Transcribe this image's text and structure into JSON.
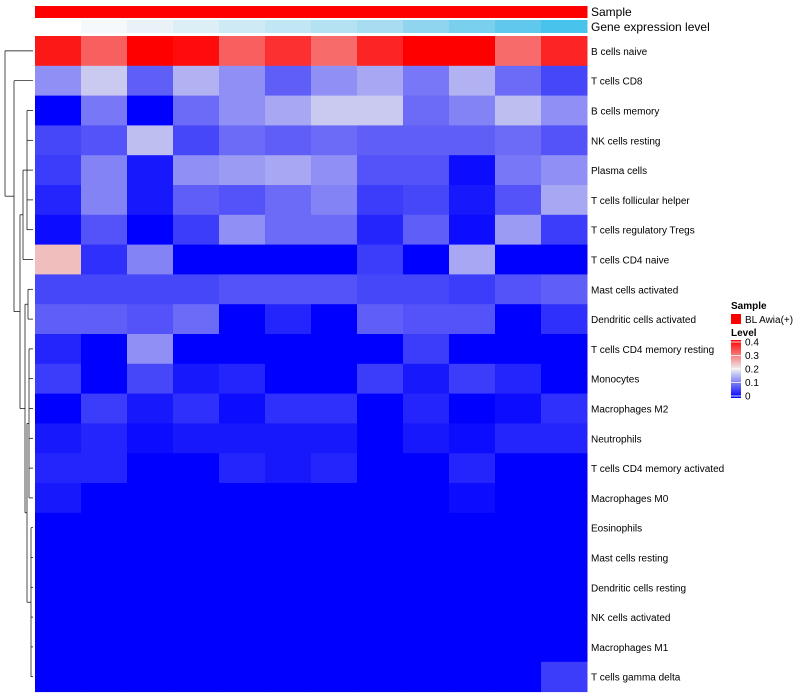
{
  "chart_data": {
    "type": "heatmap",
    "title": "",
    "color_scale": {
      "stops": [
        {
          "value": 0.0,
          "color": "#0000FF"
        },
        {
          "value": 0.2,
          "color": "#EEEEEE"
        },
        {
          "value": 0.4,
          "color": "#FF0000"
        }
      ],
      "ticks": [
        "0",
        "0.1",
        "0.2",
        "0.3",
        "0.4"
      ],
      "range": [
        0,
        0.4
      ]
    },
    "annotations": [
      {
        "label": "Sample",
        "colors": [
          "#FF0000",
          "#FF0000",
          "#FF0000",
          "#FF0000",
          "#FF0000",
          "#FF0000",
          "#FF0000",
          "#FF0000",
          "#FF0000",
          "#FF0000",
          "#FF0000",
          "#FF0000"
        ]
      },
      {
        "label": "Gene expression level",
        "colors": [
          "#FFFFFF",
          "#F6F9FC",
          "#EAF2F8",
          "#DCEFF7",
          "#CEEAF5",
          "#C2E7F4",
          "#B5E2F2",
          "#A8DDF1",
          "#8FD5EF",
          "#78CFEE",
          "#60C8EC",
          "#48C3EB"
        ]
      }
    ],
    "legend": {
      "sample_title": "Sample",
      "sample_entries": [
        {
          "label": "BL Awia(+)",
          "color": "#FF0000"
        }
      ],
      "level_title": "Level"
    },
    "rows": [
      {
        "label": "B cells naive",
        "values": [
          0.38,
          0.32,
          0.4,
          0.39,
          0.32,
          0.36,
          0.31,
          0.37,
          0.4,
          0.4,
          0.31,
          0.37
        ]
      },
      {
        "label": "T cells CD8",
        "values": [
          0.12,
          0.17,
          0.08,
          0.15,
          0.12,
          0.08,
          0.12,
          0.14,
          0.1,
          0.15,
          0.09,
          0.06
        ]
      },
      {
        "label": "B cells memory",
        "values": [
          0.0,
          0.1,
          0.0,
          0.09,
          0.12,
          0.14,
          0.17,
          0.17,
          0.09,
          0.11,
          0.16,
          0.12
        ]
      },
      {
        "label": "NK cells resting",
        "values": [
          0.06,
          0.07,
          0.16,
          0.06,
          0.09,
          0.08,
          0.09,
          0.08,
          0.08,
          0.08,
          0.09,
          0.07
        ]
      },
      {
        "label": "Plasma cells",
        "values": [
          0.05,
          0.11,
          0.02,
          0.12,
          0.13,
          0.14,
          0.12,
          0.07,
          0.07,
          0.01,
          0.1,
          0.12
        ]
      },
      {
        "label": "T cells follicular helper",
        "values": [
          0.03,
          0.11,
          0.02,
          0.08,
          0.07,
          0.09,
          0.11,
          0.05,
          0.06,
          0.02,
          0.07,
          0.14
        ]
      },
      {
        "label": "T cells regulatory  Tregs",
        "values": [
          0.01,
          0.07,
          0.0,
          0.05,
          0.12,
          0.09,
          0.09,
          0.03,
          0.08,
          0.01,
          0.13,
          0.05
        ]
      },
      {
        "label": "T cells CD4 naive",
        "values": [
          0.24,
          0.04,
          0.11,
          0.0,
          0.0,
          0.0,
          0.0,
          0.05,
          0.0,
          0.14,
          0.0,
          0.0
        ]
      },
      {
        "label": "Mast cells activated",
        "values": [
          0.06,
          0.06,
          0.06,
          0.06,
          0.07,
          0.07,
          0.07,
          0.06,
          0.06,
          0.05,
          0.07,
          0.08
        ]
      },
      {
        "label": "Dendritic cells activated",
        "values": [
          0.08,
          0.08,
          0.07,
          0.09,
          0.0,
          0.03,
          0.0,
          0.08,
          0.07,
          0.07,
          0.0,
          0.04
        ]
      },
      {
        "label": "T cells CD4 memory resting",
        "values": [
          0.03,
          0.0,
          0.12,
          0.0,
          0.0,
          0.0,
          0.0,
          0.0,
          0.05,
          0.0,
          0.0,
          0.0
        ]
      },
      {
        "label": "Monocytes",
        "values": [
          0.05,
          0.0,
          0.06,
          0.02,
          0.03,
          0.0,
          0.0,
          0.05,
          0.02,
          0.05,
          0.03,
          0.0
        ]
      },
      {
        "label": "Macrophages M2",
        "values": [
          0.0,
          0.05,
          0.02,
          0.04,
          0.01,
          0.04,
          0.04,
          0.0,
          0.03,
          0.0,
          0.01,
          0.04
        ]
      },
      {
        "label": "Neutrophils",
        "values": [
          0.02,
          0.03,
          0.01,
          0.02,
          0.02,
          0.02,
          0.02,
          0.0,
          0.02,
          0.01,
          0.03,
          0.03
        ]
      },
      {
        "label": "T cells CD4 memory activated",
        "values": [
          0.03,
          0.03,
          0.0,
          0.0,
          0.03,
          0.02,
          0.03,
          0.0,
          0.0,
          0.03,
          0.0,
          0.0
        ]
      },
      {
        "label": "Macrophages M0",
        "values": [
          0.02,
          0.0,
          0.0,
          0.0,
          0.0,
          0.0,
          0.0,
          0.0,
          0.0,
          0.01,
          0.0,
          0.0
        ]
      },
      {
        "label": "Eosinophils",
        "values": [
          0.0,
          0.0,
          0.0,
          0.0,
          0.0,
          0.0,
          0.0,
          0.0,
          0.0,
          0.0,
          0.0,
          0.0
        ]
      },
      {
        "label": "Mast cells resting",
        "values": [
          0.0,
          0.0,
          0.0,
          0.0,
          0.0,
          0.0,
          0.0,
          0.0,
          0.0,
          0.0,
          0.0,
          0.0
        ]
      },
      {
        "label": "Dendritic cells resting",
        "values": [
          0.0,
          0.0,
          0.0,
          0.0,
          0.0,
          0.0,
          0.0,
          0.0,
          0.0,
          0.0,
          0.0,
          0.0
        ]
      },
      {
        "label": "NK cells activated",
        "values": [
          0.0,
          0.0,
          0.0,
          0.0,
          0.0,
          0.0,
          0.0,
          0.0,
          0.0,
          0.0,
          0.0,
          0.0
        ]
      },
      {
        "label": "Macrophages M1",
        "values": [
          0.0,
          0.0,
          0.0,
          0.0,
          0.0,
          0.0,
          0.0,
          0.0,
          0.0,
          0.0,
          0.0,
          0.0
        ]
      },
      {
        "label": "T cells gamma delta",
        "values": [
          0.0,
          0.0,
          0.0,
          0.0,
          0.0,
          0.0,
          0.0,
          0.0,
          0.0,
          0.0,
          0.0,
          0.05
        ]
      }
    ],
    "row_dendrogram": true
  }
}
